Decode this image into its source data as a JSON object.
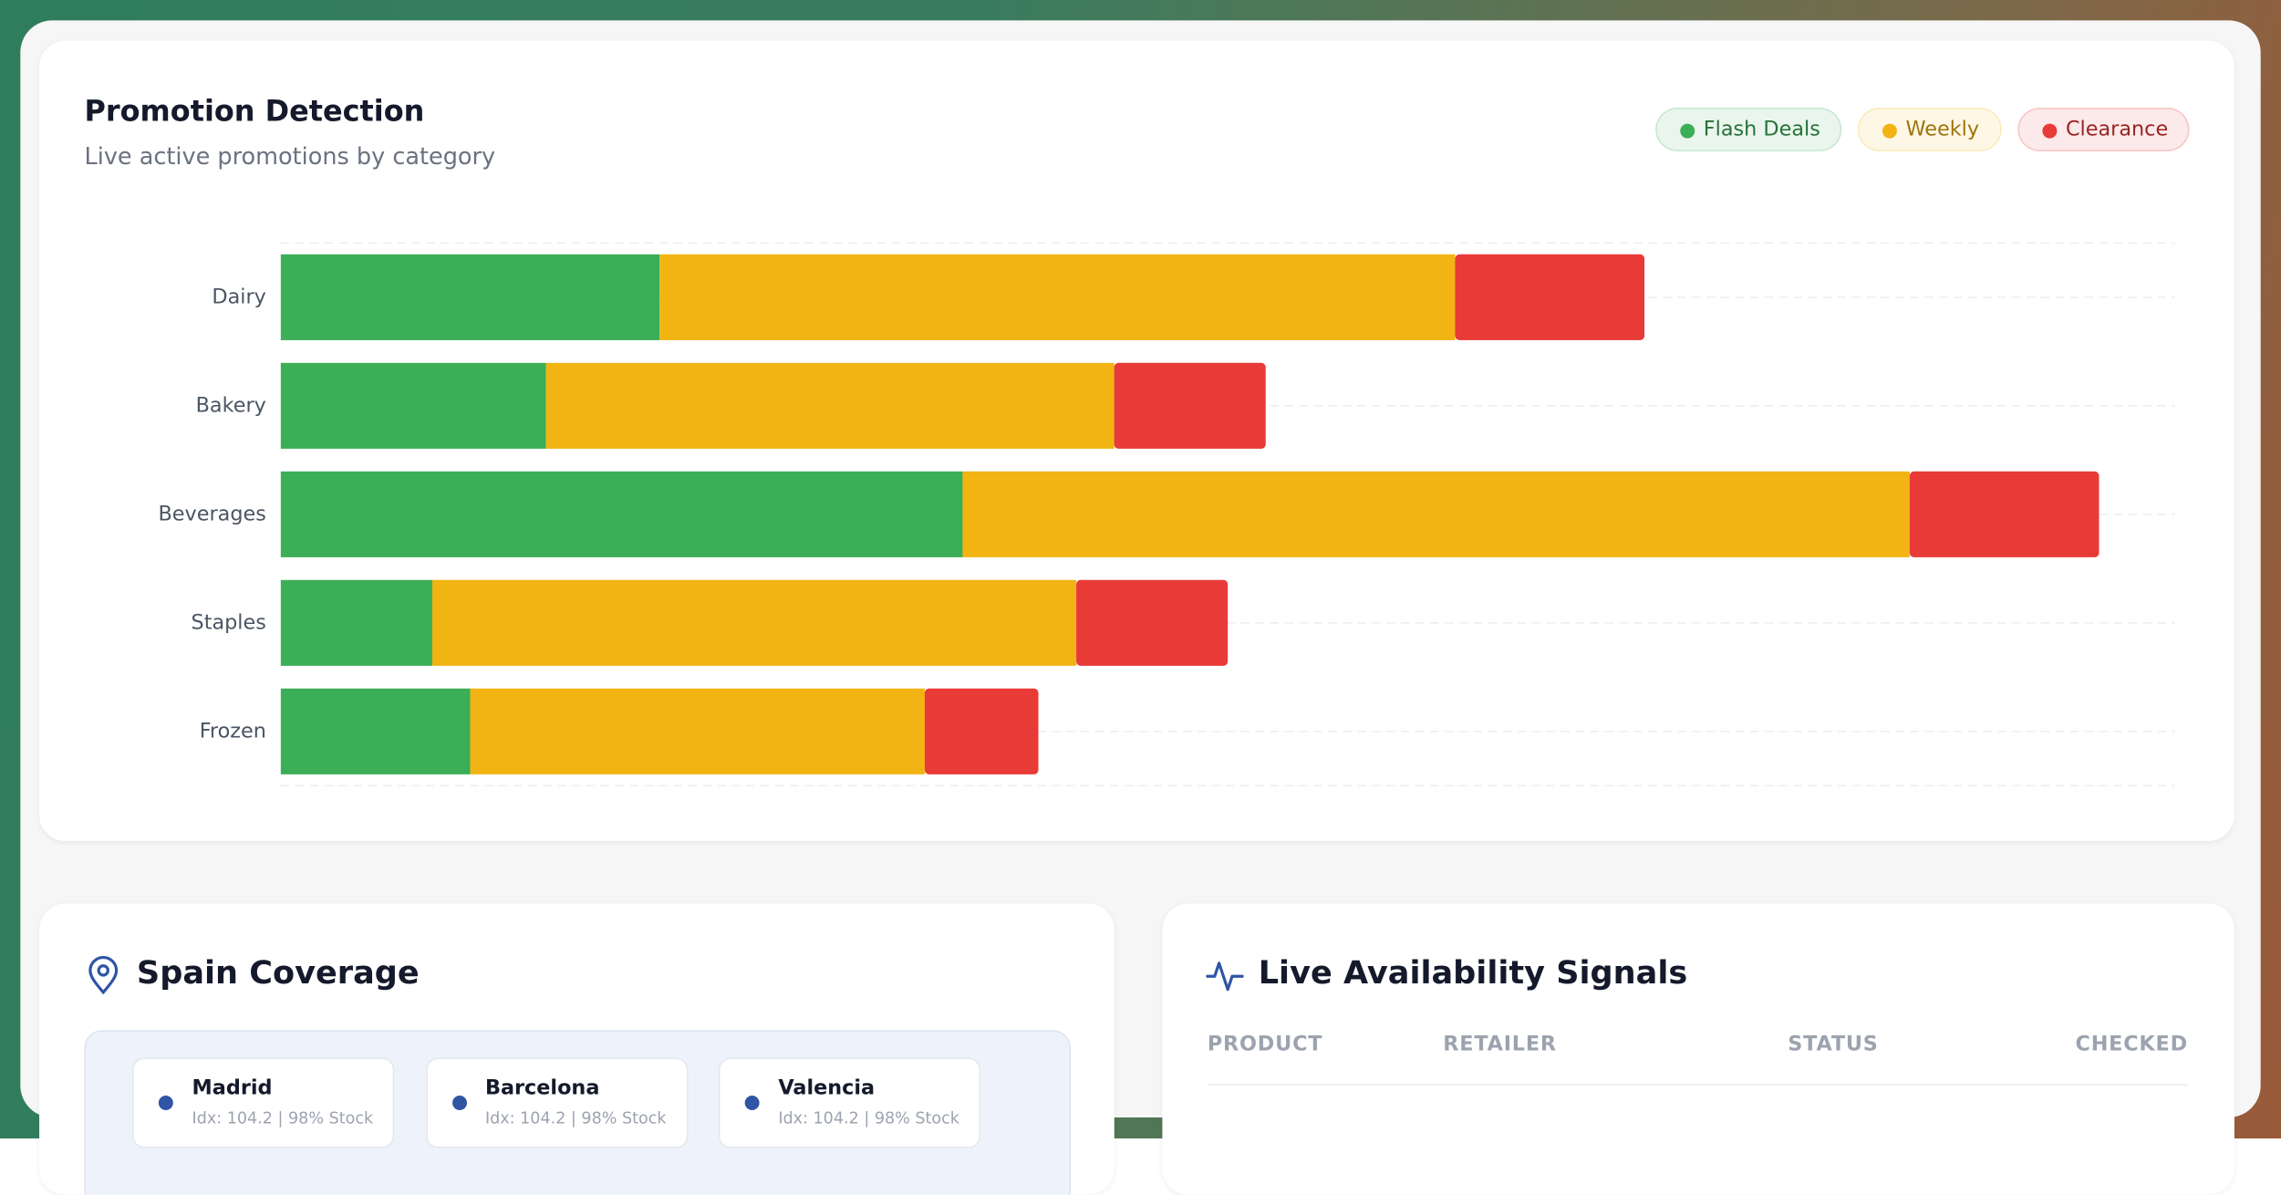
{
  "chart_data": {
    "type": "bar",
    "orientation": "horizontal",
    "stacked": true,
    "title": "Promotion Detection",
    "subtitle": "Live active promotions by category",
    "categories": [
      "Dairy",
      "Bakery",
      "Beverages",
      "Staples",
      "Frozen"
    ],
    "series": [
      {
        "name": "Flash Deals",
        "color": "#3cae58",
        "values": [
          10,
          7,
          18,
          4,
          5
        ]
      },
      {
        "name": "Weekly",
        "color": "#f2b413",
        "values": [
          21,
          15,
          25,
          17,
          12
        ]
      },
      {
        "name": "Clearance",
        "color": "#e83a37",
        "values": [
          5,
          4,
          5,
          4,
          3
        ]
      }
    ],
    "xlim": [
      0,
      50
    ]
  },
  "coverage": {
    "title": "Spain Coverage",
    "cities": [
      {
        "name": "Madrid",
        "detail": "Idx: 104.2 | 98% Stock"
      },
      {
        "name": "Barcelona",
        "detail": "Idx: 104.2 | 98% Stock"
      },
      {
        "name": "Valencia",
        "detail": "Idx: 104.2 | 98% Stock"
      }
    ]
  },
  "signals": {
    "title": "Live Availability Signals",
    "columns": [
      "PRODUCT",
      "RETAILER",
      "STATUS",
      "CHECKED"
    ]
  }
}
